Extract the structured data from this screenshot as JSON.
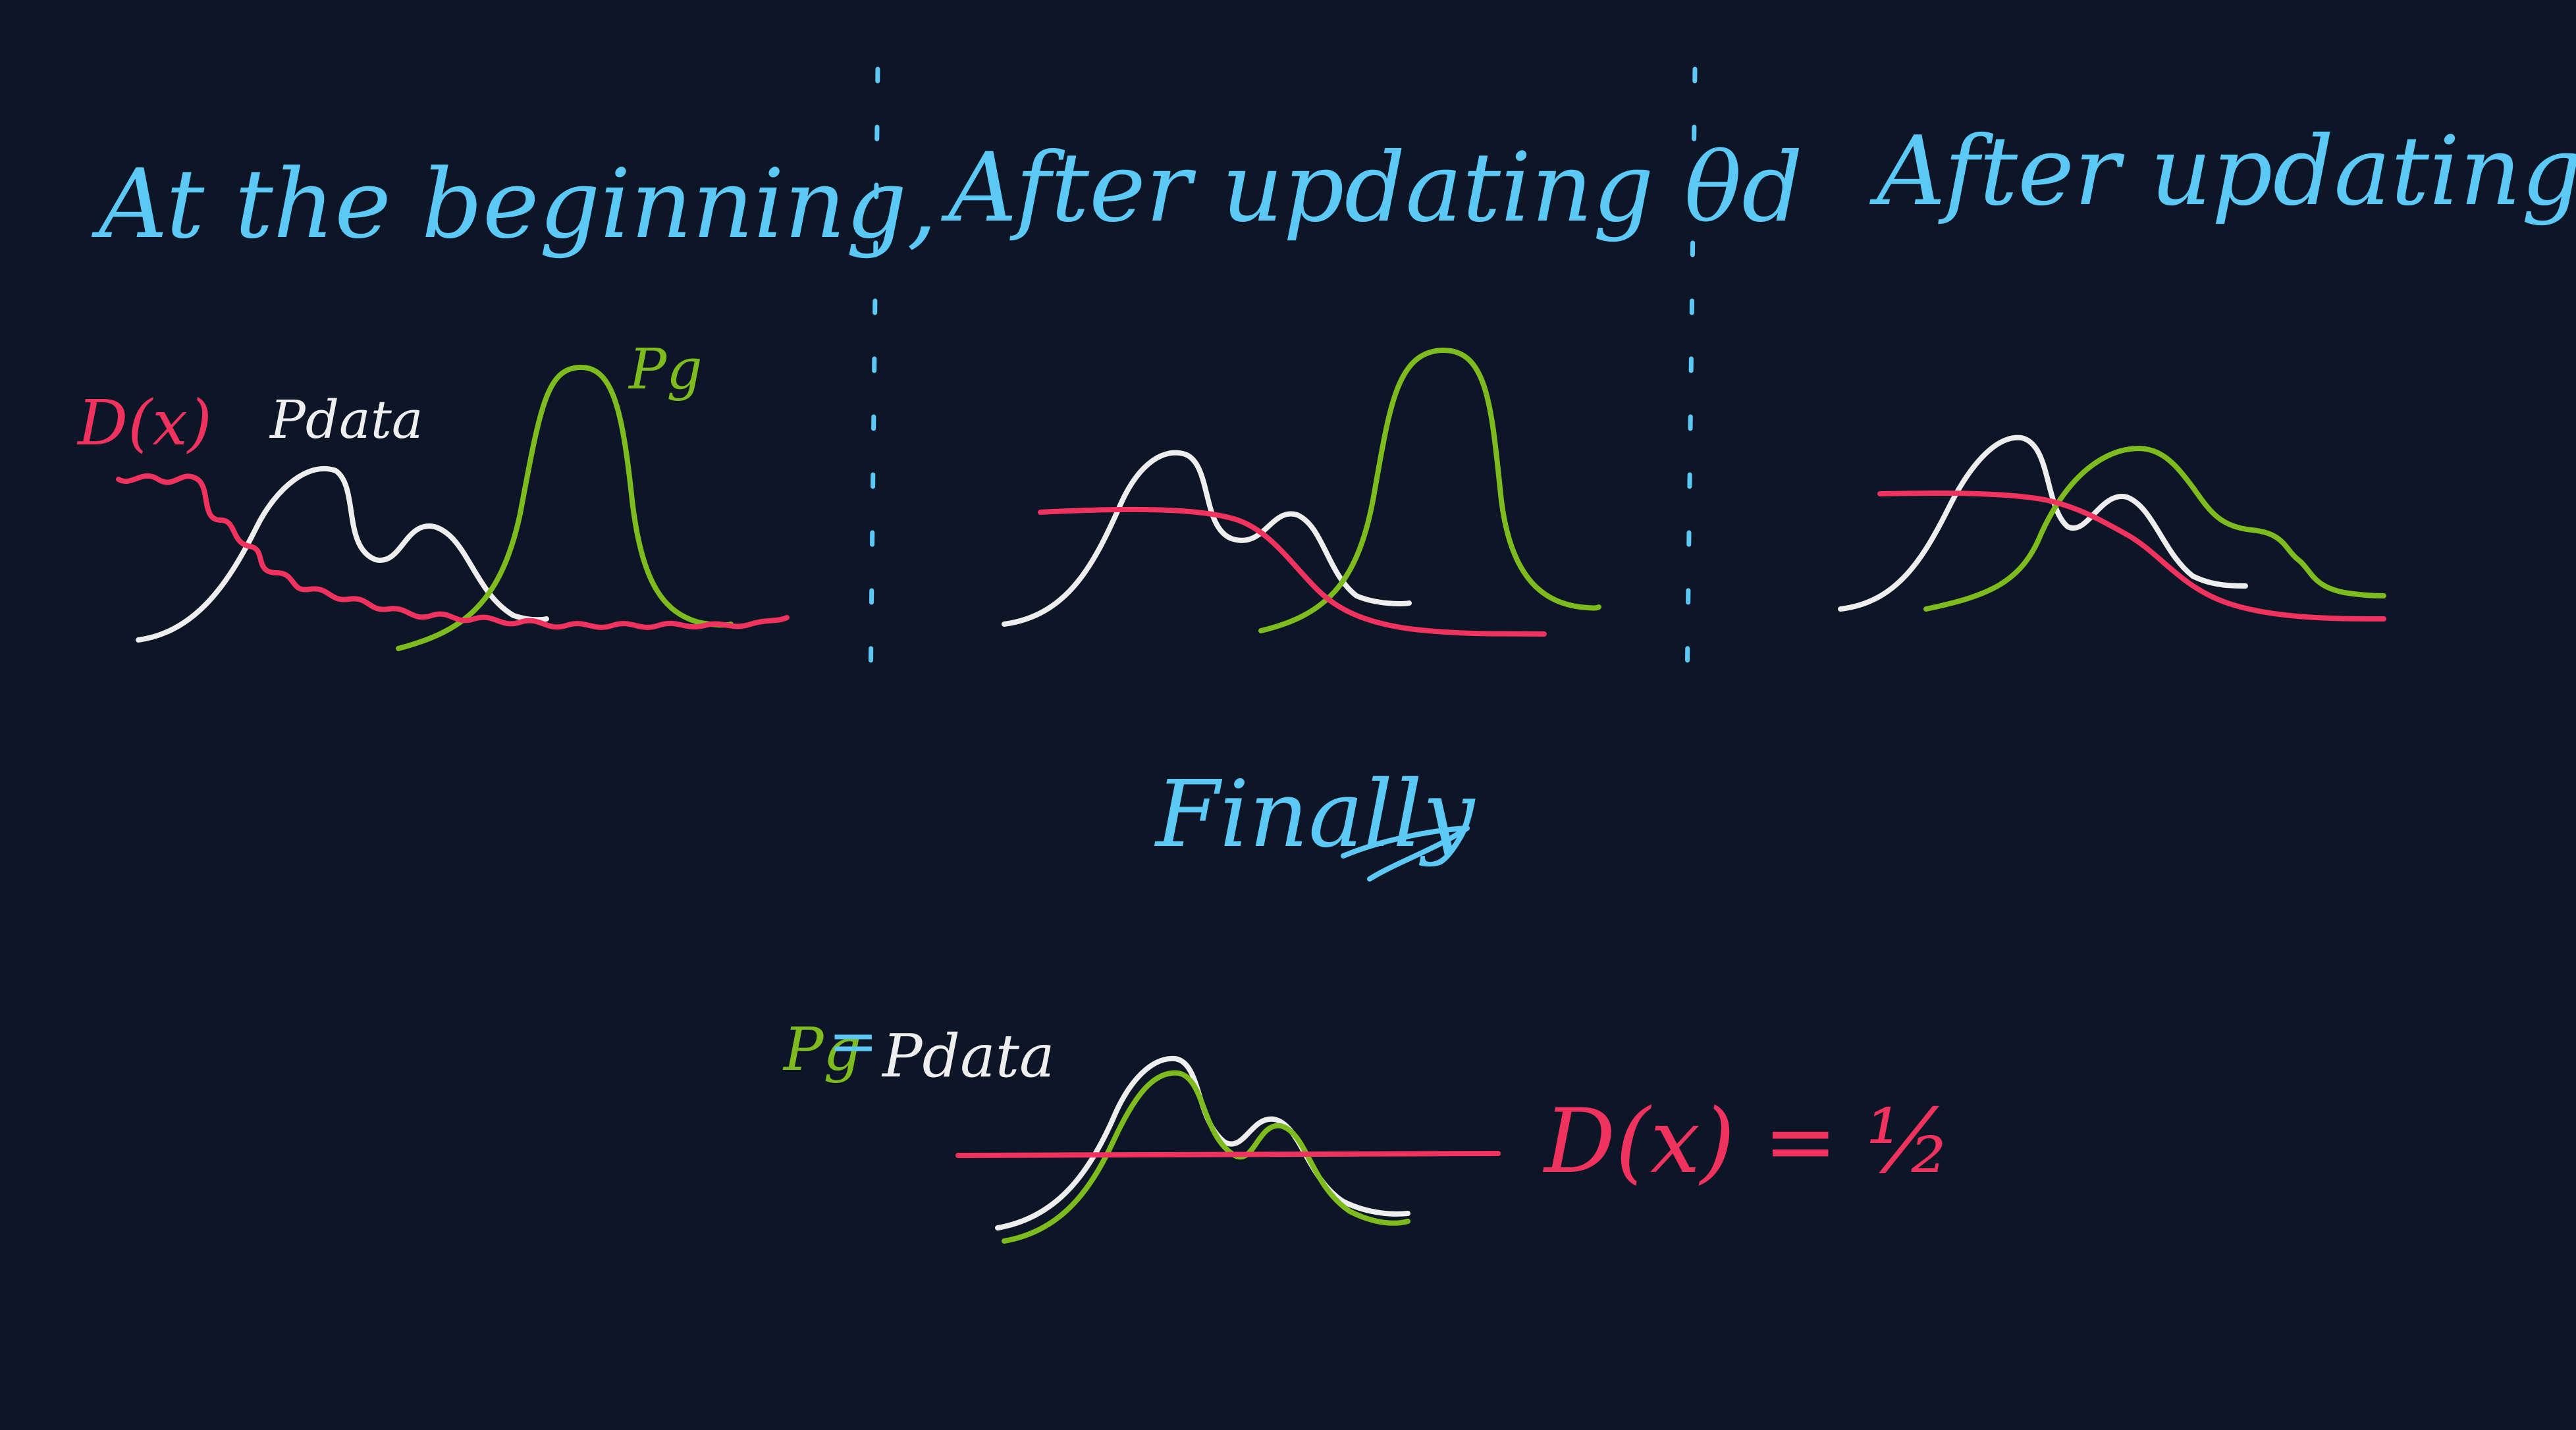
{
  "colors": {
    "background": "#0d1627",
    "heading": "#5cc8f5",
    "discriminator": "#f0325f",
    "data": "#eeeeee",
    "generator": "#7dbb1f",
    "divider": "#5cc8f5"
  },
  "panels": [
    {
      "heading": "At the beginning,",
      "label_d": "D(x)",
      "label_pdata": "Pdata",
      "label_pg": "Pg"
    },
    {
      "heading": "After updating θd"
    },
    {
      "heading": "After updating θg"
    }
  ],
  "finally": {
    "heading": "Finally",
    "pg": "Pg",
    "equals": "=",
    "pdata": "Pdata",
    "d_equation": "D(x) = ½"
  }
}
